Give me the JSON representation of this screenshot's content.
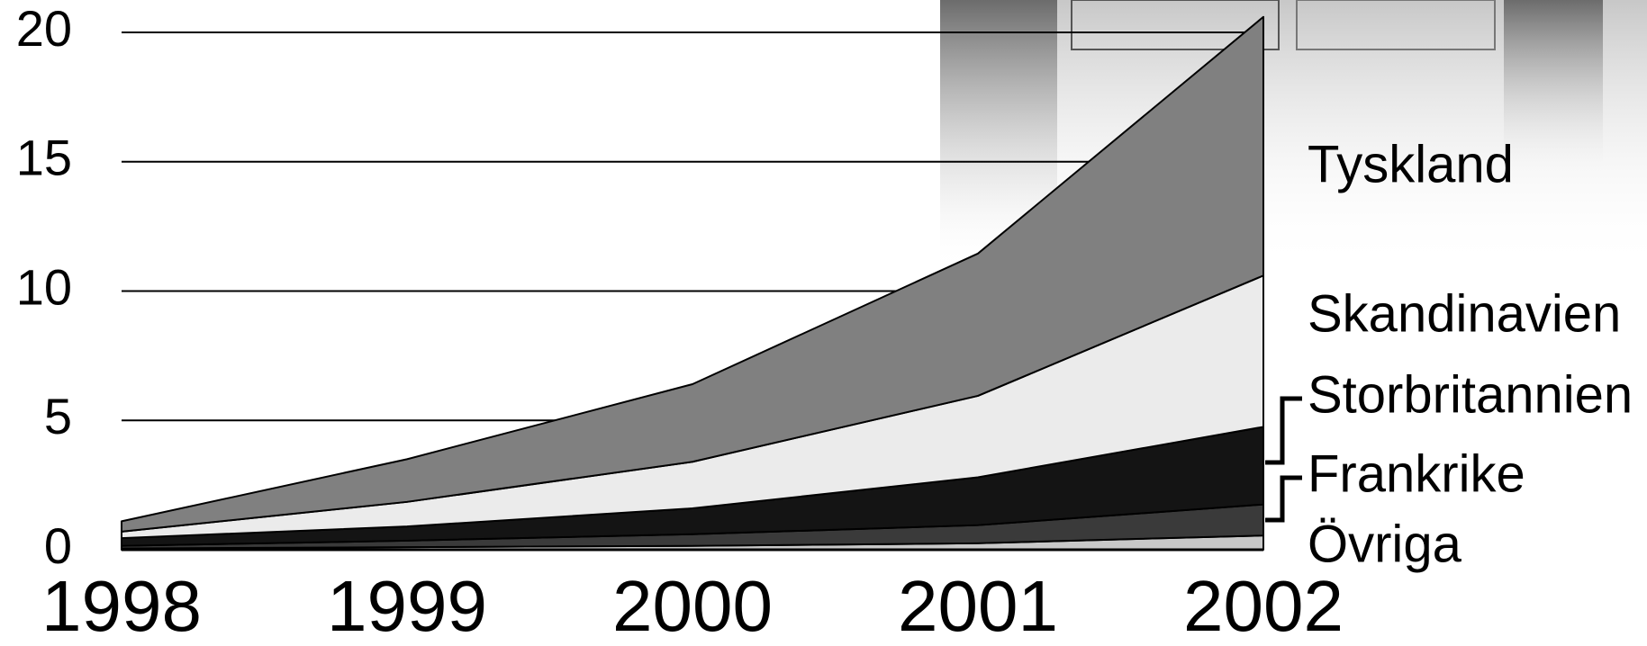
{
  "chart_data": {
    "type": "stacked-area",
    "categories": [
      "1998",
      "1999",
      "2000",
      "2001",
      "2002"
    ],
    "series": [
      {
        "name": "Övriga",
        "color": "#c8c8c8",
        "values": [
          0.05,
          0.1,
          0.15,
          0.25,
          0.55
        ]
      },
      {
        "name": "Frankrike",
        "color": "#3a3a3a",
        "values": [
          0.1,
          0.25,
          0.45,
          0.7,
          1.2
        ]
      },
      {
        "name": "Storbritannien",
        "color": "#141414",
        "values": [
          0.3,
          0.55,
          1.0,
          1.85,
          3.0
        ]
      },
      {
        "name": "Skandinavien",
        "color": "#ebebeb",
        "values": [
          0.25,
          0.95,
          1.8,
          3.15,
          5.85
        ]
      },
      {
        "name": "Tyskland",
        "color": "#808080",
        "values": [
          0.4,
          1.65,
          3.0,
          5.5,
          10.0
        ]
      }
    ],
    "ylim": [
      0,
      20
    ],
    "yticks": [
      0,
      5,
      10,
      15,
      20
    ],
    "grid": true
  }
}
